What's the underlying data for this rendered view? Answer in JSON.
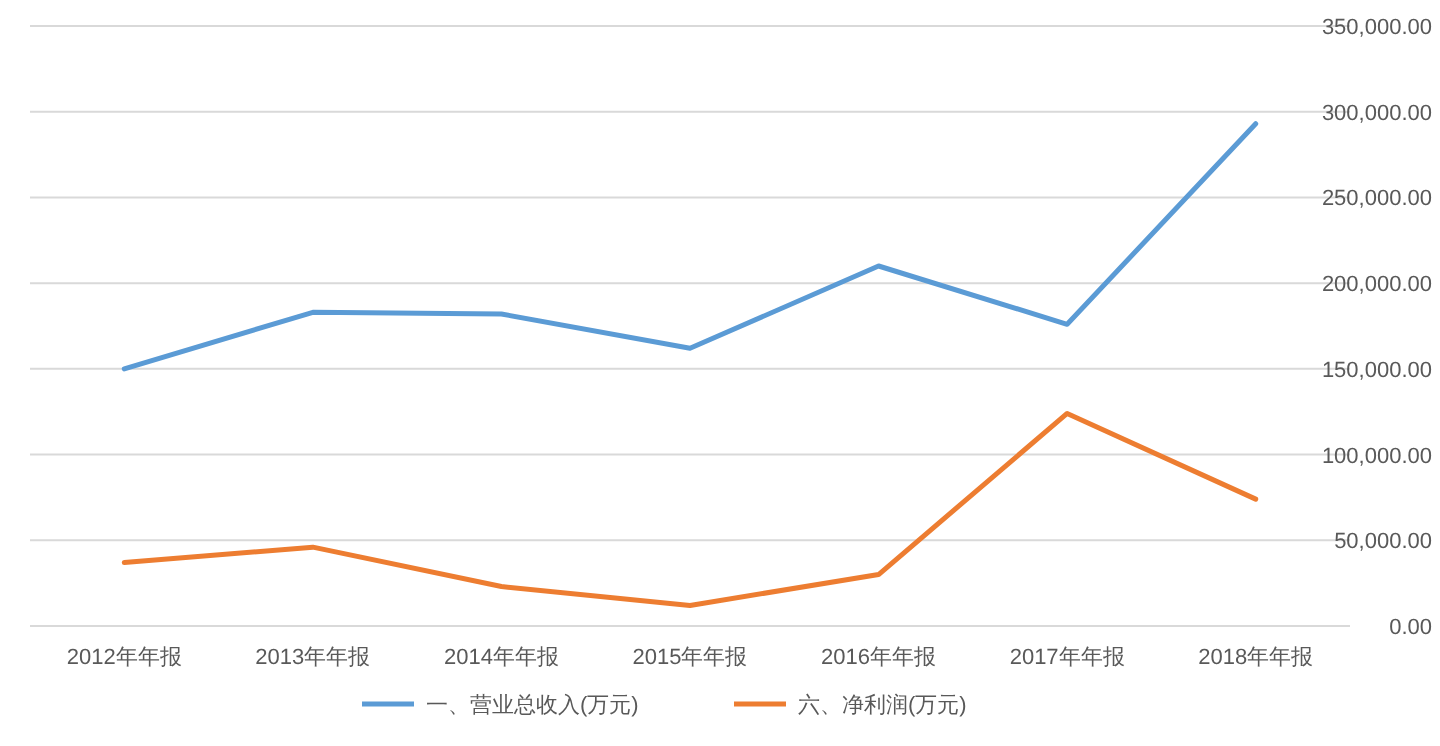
{
  "chart_data": {
    "type": "line",
    "categories": [
      "2012年年报",
      "2013年年报",
      "2014年年报",
      "2015年年报",
      "2016年年报",
      "2017年年报",
      "2018年年报"
    ],
    "series": [
      {
        "name": "一、营业总收入(万元)",
        "color": "#5b9bd5",
        "values": [
          150000,
          183000,
          182000,
          162000,
          210000,
          176000,
          293000
        ]
      },
      {
        "name": "六、净利润(万元)",
        "color": "#ed7d31",
        "values": [
          37000,
          46000,
          23000,
          12000,
          30000,
          124000,
          74000
        ]
      }
    ],
    "ylim": [
      0,
      350000
    ],
    "yticks": [
      {
        "value": 0,
        "label": "0.00"
      },
      {
        "value": 50000,
        "label": "50,000.00"
      },
      {
        "value": 100000,
        "label": "100,000.00"
      },
      {
        "value": 150000,
        "label": "150,000.00"
      },
      {
        "value": 200000,
        "label": "200,000.00"
      },
      {
        "value": 250000,
        "label": "250,000.00"
      },
      {
        "value": 300000,
        "label": "300,000.00"
      },
      {
        "value": 350000,
        "label": "350,000.00"
      }
    ],
    "grid": "y",
    "legend": "bottom",
    "line_style": "solid",
    "marker": "none"
  }
}
